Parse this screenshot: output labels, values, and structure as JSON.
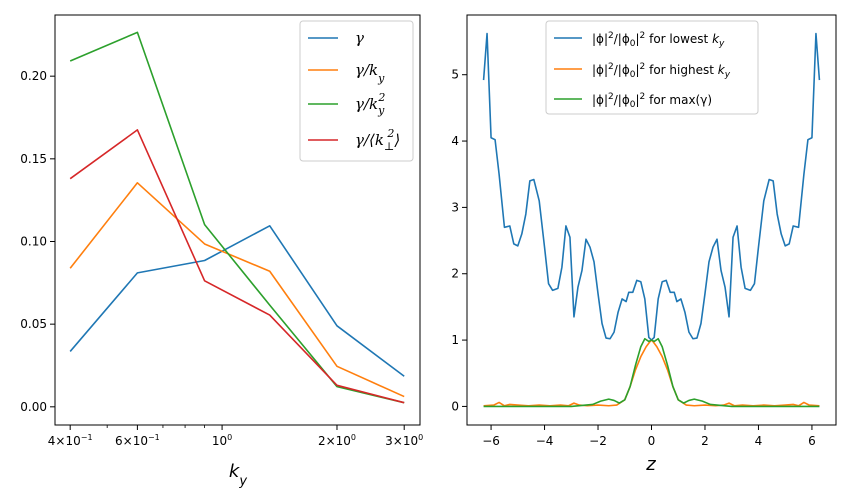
{
  "chart_data": [
    {
      "type": "line",
      "x_scale": "log",
      "xlabel": "k_y",
      "ylabel": "",
      "xlim": [
        0.365,
        3.3
      ],
      "ylim": [
        -0.011,
        0.237
      ],
      "grid": false,
      "legend_position": "top-right",
      "x": [
        0.4,
        0.6,
        0.9,
        1.333,
        2.0,
        3.0
      ],
      "x_ticks": [
        {
          "value": 0.4,
          "base": "4×10",
          "exp": "−1"
        },
        {
          "value": 0.6,
          "base": "6×10",
          "exp": "−1"
        },
        {
          "value": 1.0,
          "base": "10",
          "exp": "0"
        },
        {
          "value": 2.0,
          "base": "2×10",
          "exp": "0"
        },
        {
          "value": 3.0,
          "base": "3×10",
          "exp": "0"
        }
      ],
      "y_ticks": [
        "0.00",
        "0.05",
        "0.10",
        "0.15",
        "0.20"
      ],
      "series": [
        {
          "name": "γ",
          "color": "#1f77b4",
          "values": [
            0.0335,
            0.081,
            0.0885,
            0.1095,
            0.049,
            0.0185
          ]
        },
        {
          "name": "γ/k_y",
          "color": "#ff7f0e",
          "values": [
            0.0838,
            0.1355,
            0.0985,
            0.082,
            0.0245,
            0.0062
          ]
        },
        {
          "name": "γ/k_y²",
          "color": "#2ca02c",
          "values": [
            0.2092,
            0.2265,
            0.1102,
            0.0615,
            0.0122,
            0.0025
          ]
        },
        {
          "name": "γ/⟨k⊥²⟩",
          "color": "#d62728",
          "values": [
            0.138,
            0.1675,
            0.0762,
            0.0555,
            0.013,
            0.0025
          ]
        }
      ]
    },
    {
      "type": "line",
      "xlabel": "z",
      "ylabel": "",
      "xlim": [
        -6.9,
        6.9
      ],
      "ylim": [
        -0.28,
        5.9
      ],
      "grid": false,
      "legend_position": "top-center",
      "x_ticks": [
        "−6",
        "−4",
        "−2",
        "0",
        "2",
        "4",
        "6"
      ],
      "y_ticks": [
        "0",
        "1",
        "2",
        "3",
        "4",
        "5"
      ],
      "series": [
        {
          "name": "|ϕ|²/|ϕ₀|² for lowest k_y",
          "color": "#1f77b4",
          "x": [
            -6.28,
            -6.15,
            -6.0,
            -5.85,
            -5.7,
            -5.5,
            -5.3,
            -5.15,
            -5.0,
            -4.85,
            -4.7,
            -4.55,
            -4.4,
            -4.2,
            -4.0,
            -3.85,
            -3.7,
            -3.5,
            -3.35,
            -3.2,
            -3.05,
            -2.9,
            -2.75,
            -2.6,
            -2.45,
            -2.3,
            -2.15,
            -2.0,
            -1.85,
            -1.7,
            -1.55,
            -1.4,
            -1.25,
            -1.1,
            -0.95,
            -0.85,
            -0.7,
            -0.55,
            -0.4,
            -0.25,
            -0.1,
            0.0,
            0.1,
            0.25,
            0.4,
            0.55,
            0.7,
            0.85,
            0.95,
            1.1,
            1.25,
            1.4,
            1.55,
            1.7,
            1.85,
            2.0,
            2.15,
            2.3,
            2.45,
            2.6,
            2.75,
            2.9,
            3.05,
            3.2,
            3.35,
            3.5,
            3.7,
            3.85,
            4.0,
            4.2,
            4.4,
            4.55,
            4.7,
            4.85,
            5.0,
            5.15,
            5.3,
            5.5,
            5.7,
            5.85,
            6.0,
            6.15,
            6.28
          ],
          "values": [
            4.92,
            5.62,
            4.05,
            4.02,
            3.5,
            2.7,
            2.72,
            2.45,
            2.42,
            2.6,
            2.9,
            3.4,
            3.42,
            3.1,
            2.4,
            1.85,
            1.75,
            1.78,
            2.1,
            2.72,
            2.55,
            1.35,
            1.8,
            2.05,
            2.52,
            2.4,
            2.18,
            1.7,
            1.25,
            1.03,
            1.02,
            1.12,
            1.42,
            1.62,
            1.58,
            1.72,
            1.72,
            1.9,
            1.88,
            1.62,
            1.04,
            1.0,
            1.04,
            1.62,
            1.88,
            1.9,
            1.72,
            1.72,
            1.58,
            1.62,
            1.42,
            1.12,
            1.02,
            1.03,
            1.25,
            1.7,
            2.18,
            2.4,
            2.52,
            2.05,
            1.8,
            1.35,
            2.55,
            2.72,
            2.1,
            1.78,
            1.75,
            1.85,
            2.4,
            3.1,
            3.42,
            3.4,
            2.9,
            2.6,
            2.42,
            2.45,
            2.72,
            2.7,
            3.5,
            4.02,
            4.05,
            5.62,
            4.92
          ]
        },
        {
          "name": "|ϕ|²/|ϕ₀|² for highest k_y",
          "color": "#ff7f0e",
          "x": [
            -6.28,
            -5.9,
            -5.7,
            -5.5,
            -5.3,
            -5.0,
            -4.6,
            -4.2,
            -3.8,
            -3.4,
            -3.1,
            -2.9,
            -2.7,
            -2.4,
            -2.0,
            -1.6,
            -1.3,
            -1.0,
            -0.8,
            -0.6,
            -0.4,
            -0.2,
            -0.05,
            0.0,
            0.05,
            0.2,
            0.4,
            0.6,
            0.8,
            1.0,
            1.3,
            1.6,
            2.0,
            2.4,
            2.7,
            2.9,
            3.1,
            3.4,
            3.8,
            4.2,
            4.6,
            5.0,
            5.3,
            5.5,
            5.7,
            5.9,
            6.28
          ],
          "values": [
            0.01,
            0.02,
            0.06,
            0.01,
            0.03,
            0.02,
            0.01,
            0.02,
            0.01,
            0.02,
            0.01,
            0.05,
            0.02,
            0.01,
            0.02,
            0.01,
            0.02,
            0.1,
            0.3,
            0.55,
            0.75,
            0.9,
            0.98,
            1.0,
            0.98,
            0.9,
            0.75,
            0.55,
            0.3,
            0.1,
            0.02,
            0.01,
            0.02,
            0.01,
            0.02,
            0.05,
            0.01,
            0.02,
            0.01,
            0.02,
            0.01,
            0.02,
            0.03,
            0.01,
            0.06,
            0.02,
            0.01
          ]
        },
        {
          "name": "|ϕ|²/|ϕ₀|² for max(γ)",
          "color": "#2ca02c",
          "x": [
            -6.28,
            -5.0,
            -4.0,
            -3.0,
            -2.2,
            -1.9,
            -1.6,
            -1.4,
            -1.2,
            -1.0,
            -0.8,
            -0.6,
            -0.4,
            -0.25,
            -0.1,
            0.0,
            0.1,
            0.25,
            0.4,
            0.6,
            0.8,
            1.0,
            1.2,
            1.4,
            1.6,
            1.9,
            2.2,
            3.0,
            4.0,
            5.0,
            6.28
          ],
          "values": [
            0.0,
            0.0,
            0.0,
            0.0,
            0.03,
            0.08,
            0.11,
            0.09,
            0.05,
            0.1,
            0.3,
            0.62,
            0.9,
            1.02,
            0.98,
            1.0,
            0.98,
            1.02,
            0.9,
            0.62,
            0.3,
            0.1,
            0.05,
            0.09,
            0.11,
            0.08,
            0.03,
            0.0,
            0.0,
            0.0,
            0.0
          ]
        }
      ]
    }
  ]
}
